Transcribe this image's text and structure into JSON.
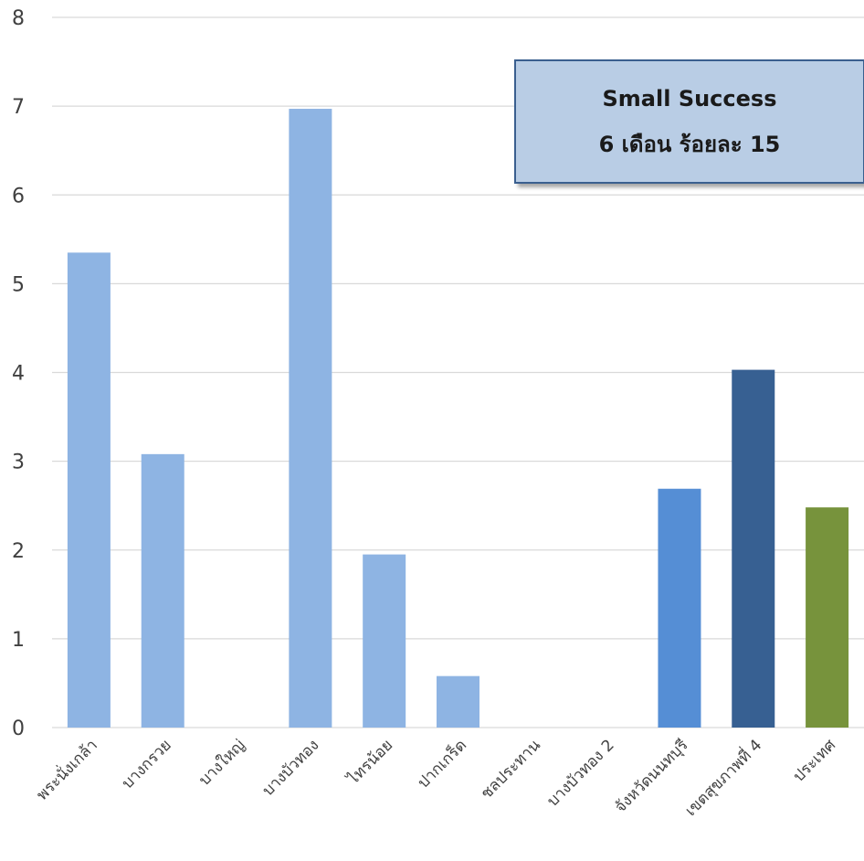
{
  "chart_data": {
    "type": "bar",
    "categories": [
      "พระนั่งเกล้า",
      "บางกรวย",
      "บางใหญ่",
      "บางบัวทอง",
      "ไทรน้อย",
      "ปากเกร็ด",
      "ชลประทาน",
      "บางบัวทอง 2",
      "จังหวัดนนทบุรี",
      "เขตสุขภาพที่ 4",
      "ประเทศ"
    ],
    "values": [
      5.35,
      3.08,
      0,
      6.97,
      1.95,
      0.58,
      0,
      0,
      2.69,
      4.03,
      2.48
    ],
    "colors": [
      "#8eb4e3",
      "#8eb4e3",
      "#8eb4e3",
      "#8eb4e3",
      "#8eb4e3",
      "#8eb4e3",
      "#8eb4e3",
      "#8eb4e3",
      "#558ed5",
      "#376092",
      "#77933c"
    ],
    "ylim": [
      0,
      8
    ],
    "yticks": [
      "0",
      "1",
      "2",
      "3",
      "4",
      "5",
      "6",
      "7",
      "8"
    ],
    "grid": true,
    "legend": "none",
    "annotation": {
      "line1": "Small Success",
      "line2": "6 เดือน ร้อยละ 15"
    }
  }
}
